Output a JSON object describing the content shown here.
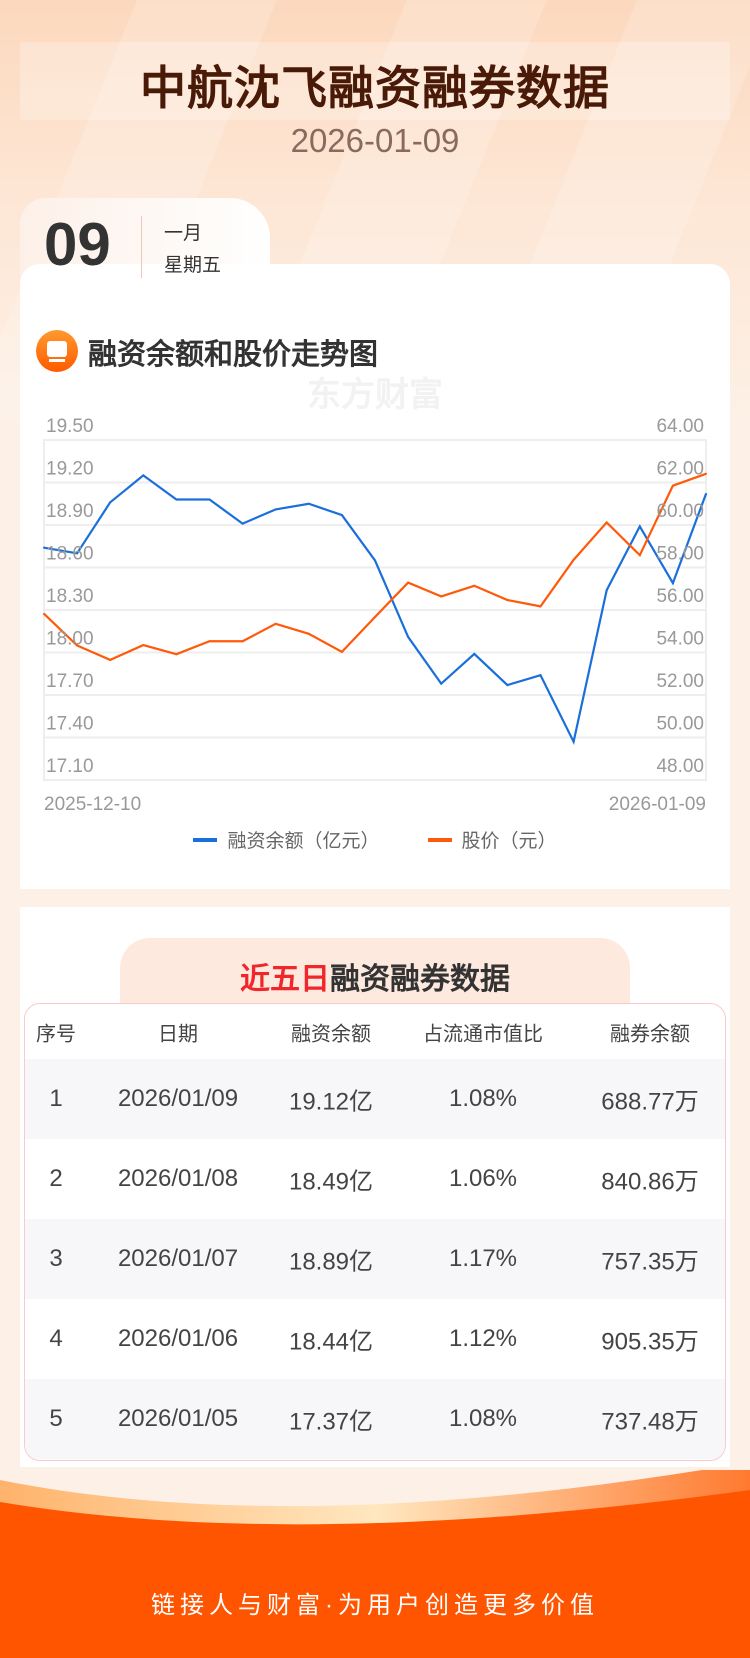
{
  "header": {
    "title": "中航沈飞融资融券数据",
    "date": "2026-01-09"
  },
  "date_card": {
    "day": "09",
    "month": "一月",
    "weekday": "星期五"
  },
  "chart_section": {
    "title": "融资余额和股价走势图",
    "icon": "chart-monitor-icon",
    "watermark": "东方财富"
  },
  "chart_data": {
    "type": "line",
    "x_start_label": "2025-12-10",
    "x_end_label": "2026-01-09",
    "left_axis": {
      "ticks": [
        "19.50",
        "19.20",
        "18.90",
        "18.60",
        "18.30",
        "18.00",
        "17.70",
        "17.40",
        "17.10"
      ],
      "range": [
        17.1,
        19.5
      ]
    },
    "right_axis": {
      "ticks": [
        "64.00",
        "62.00",
        "60.00",
        "58.00",
        "56.00",
        "54.00",
        "52.00",
        "50.00",
        "48.00"
      ],
      "range": [
        48,
        64
      ]
    },
    "grid": true,
    "legend": "bottom",
    "series": [
      {
        "name": "融资余额（亿元）",
        "axis": "left",
        "color": "#1a6fdb",
        "values": [
          18.74,
          18.7,
          19.06,
          19.25,
          19.08,
          19.08,
          18.91,
          19.01,
          19.05,
          18.97,
          18.65,
          18.11,
          17.78,
          17.99,
          17.77,
          17.84,
          17.37,
          18.44,
          18.89,
          18.49,
          19.12
        ]
      },
      {
        "name": "股价（元）",
        "axis": "right",
        "color": "#ff5a0a",
        "values": [
          55.82,
          54.33,
          53.65,
          54.35,
          53.92,
          54.53,
          54.53,
          55.35,
          54.88,
          54.03,
          55.67,
          57.29,
          56.64,
          57.14,
          56.47,
          56.17,
          58.36,
          60.12,
          58.58,
          61.85,
          62.41
        ]
      }
    ]
  },
  "table_section": {
    "title_highlight": "近五日",
    "title_rest": "融资融券数据",
    "columns": [
      "序号",
      "日期",
      "融资余额",
      "占流通市值比",
      "融券余额"
    ],
    "rows": [
      [
        "1",
        "2026/01/09",
        "19.12亿",
        "1.08%",
        "688.77万"
      ],
      [
        "2",
        "2026/01/08",
        "18.49亿",
        "1.06%",
        "840.86万"
      ],
      [
        "3",
        "2026/01/07",
        "18.89亿",
        "1.17%",
        "757.35万"
      ],
      [
        "4",
        "2026/01/06",
        "18.44亿",
        "1.12%",
        "905.35万"
      ],
      [
        "5",
        "2026/01/05",
        "17.37亿",
        "1.08%",
        "737.48万"
      ]
    ]
  },
  "footer": {
    "slogan": "链接人与财富·为用户创造更多价值",
    "color": "#ff5500"
  }
}
